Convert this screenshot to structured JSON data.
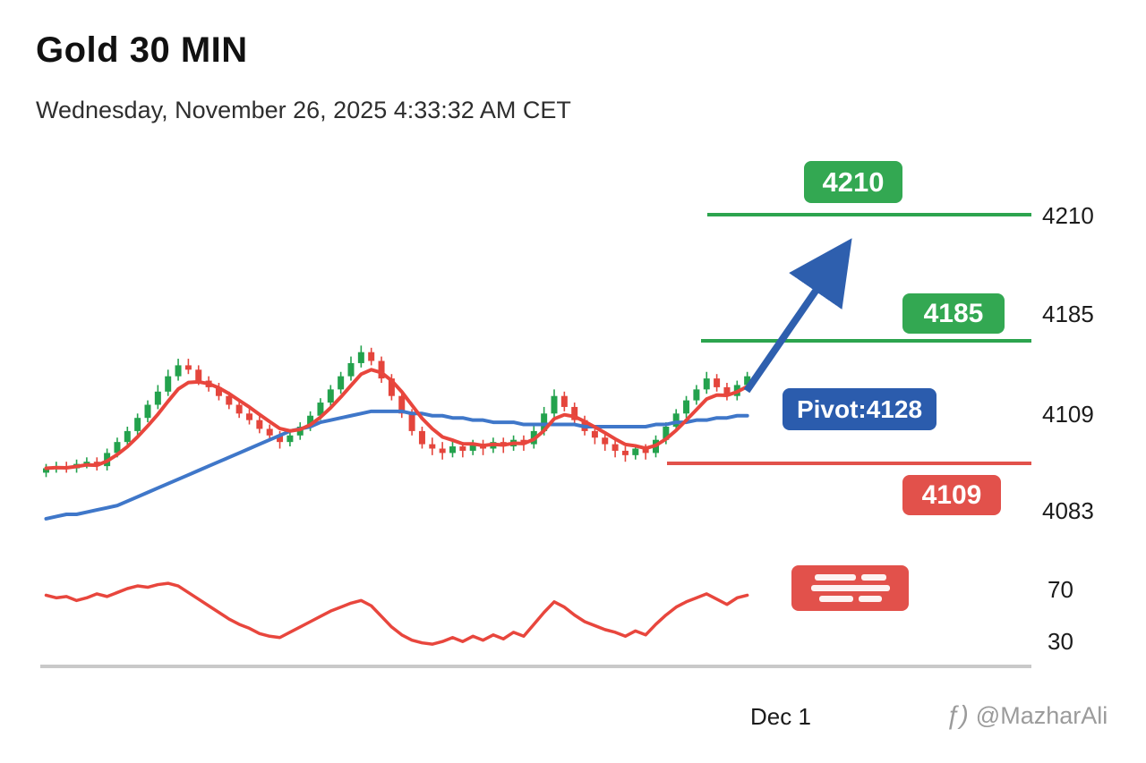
{
  "header": {
    "title": "Gold 30 MIN",
    "subtitle": "Wednesday, November 26, 2025 4:33:32 AM CET"
  },
  "annotations": {
    "resistance1_label": "4210",
    "resistance2_label": "4185",
    "pivot_label": "Pivot:4128",
    "support_label": "4109"
  },
  "axis": {
    "price_labels": [
      "4210",
      "4185",
      "4109",
      "4083"
    ],
    "rsi_labels": [
      "70",
      "30"
    ],
    "x_label": "Dec 1"
  },
  "watermark": {
    "icon": "ƒ)",
    "handle": "@MazharAli"
  },
  "colors": {
    "up_candle": "#23a24d",
    "down_candle": "#e4453c",
    "ma_fast": "#e8463d",
    "ma_slow": "#3f77c9",
    "rsi": "#e8463d",
    "level_green": "#2ca44e",
    "level_red": "#e2514b",
    "badge_green": "#33a852",
    "badge_red": "#e2514b",
    "badge_blue": "#2b5cad",
    "arrow": "#2e5fae",
    "baseline": "#c9c9c9",
    "axis_text": "#1b1b1b",
    "watermark": "#9b9b9b"
  },
  "chart_data": {
    "type": "candlestick",
    "title": "Gold 30 MIN",
    "timestamp": "Wednesday, November 26, 2025 4:33:32 AM CET",
    "x_axis": {
      "tick": "Dec 1"
    },
    "price_axis_range": [
      4075,
      4165
    ],
    "levels": {
      "resistance1": 4210,
      "resistance2": 4185,
      "pivot": 4128,
      "support": 4109
    },
    "right_axis_price_labels": [
      4210,
      4185,
      4109,
      4083
    ],
    "rsi_axis_labels": [
      70,
      30
    ],
    "candles_ohlc": [
      [
        4101,
        4105,
        4099,
        4103
      ],
      [
        4103,
        4106,
        4101,
        4104
      ],
      [
        4104,
        4106,
        4101,
        4103
      ],
      [
        4103,
        4107,
        4101,
        4105
      ],
      [
        4105,
        4108,
        4103,
        4106
      ],
      [
        4106,
        4108,
        4102,
        4104
      ],
      [
        4104,
        4112,
        4102,
        4110
      ],
      [
        4110,
        4117,
        4108,
        4115
      ],
      [
        4115,
        4122,
        4113,
        4120
      ],
      [
        4120,
        4128,
        4118,
        4126
      ],
      [
        4126,
        4134,
        4124,
        4132
      ],
      [
        4132,
        4141,
        4130,
        4138
      ],
      [
        4138,
        4148,
        4136,
        4145
      ],
      [
        4145,
        4153,
        4143,
        4150
      ],
      [
        4150,
        4153,
        4146,
        4148
      ],
      [
        4148,
        4150,
        4141,
        4143
      ],
      [
        4143,
        4145,
        4138,
        4140
      ],
      [
        4140,
        4142,
        4134,
        4136
      ],
      [
        4136,
        4138,
        4130,
        4132
      ],
      [
        4132,
        4134,
        4126,
        4128
      ],
      [
        4128,
        4130,
        4123,
        4125
      ],
      [
        4125,
        4127,
        4119,
        4121
      ],
      [
        4121,
        4123,
        4116,
        4118
      ],
      [
        4118,
        4120,
        4112,
        4115
      ],
      [
        4115,
        4120,
        4113,
        4118
      ],
      [
        4118,
        4124,
        4116,
        4122
      ],
      [
        4122,
        4129,
        4120,
        4127
      ],
      [
        4127,
        4135,
        4125,
        4133
      ],
      [
        4133,
        4141,
        4131,
        4139
      ],
      [
        4139,
        4147,
        4137,
        4145
      ],
      [
        4145,
        4154,
        4143,
        4151
      ],
      [
        4151,
        4159,
        4149,
        4156
      ],
      [
        4156,
        4158,
        4150,
        4152
      ],
      [
        4152,
        4154,
        4142,
        4144
      ],
      [
        4144,
        4146,
        4134,
        4136
      ],
      [
        4136,
        4138,
        4126,
        4128
      ],
      [
        4128,
        4130,
        4118,
        4120
      ],
      [
        4120,
        4122,
        4112,
        4114
      ],
      [
        4114,
        4117,
        4109,
        4112
      ],
      [
        4112,
        4115,
        4107,
        4110
      ],
      [
        4110,
        4116,
        4108,
        4113
      ],
      [
        4113,
        4115,
        4108,
        4111
      ],
      [
        4111,
        4116,
        4109,
        4114
      ],
      [
        4114,
        4116,
        4109,
        4112
      ],
      [
        4112,
        4117,
        4110,
        4115
      ],
      [
        4115,
        4117,
        4110,
        4113
      ],
      [
        4113,
        4118,
        4111,
        4116
      ],
      [
        4116,
        4118,
        4111,
        4114
      ],
      [
        4114,
        4123,
        4112,
        4120
      ],
      [
        4120,
        4131,
        4118,
        4128
      ],
      [
        4128,
        4139,
        4126,
        4136
      ],
      [
        4136,
        4138,
        4129,
        4131
      ],
      [
        4131,
        4133,
        4123,
        4125
      ],
      [
        4125,
        4127,
        4118,
        4120
      ],
      [
        4120,
        4122,
        4114,
        4117
      ],
      [
        4117,
        4119,
        4111,
        4114
      ],
      [
        4114,
        4116,
        4108,
        4111
      ],
      [
        4111,
        4113,
        4106,
        4109
      ],
      [
        4109,
        4114,
        4107,
        4112
      ],
      [
        4112,
        4114,
        4107,
        4110
      ],
      [
        4110,
        4118,
        4108,
        4116
      ],
      [
        4116,
        4124,
        4114,
        4122
      ],
      [
        4122,
        4130,
        4120,
        4128
      ],
      [
        4128,
        4136,
        4126,
        4134
      ],
      [
        4134,
        4141,
        4132,
        4139
      ],
      [
        4139,
        4147,
        4137,
        4144
      ],
      [
        4144,
        4146,
        4138,
        4140
      ],
      [
        4140,
        4142,
        4134,
        4136
      ],
      [
        4136,
        4143,
        4134,
        4141
      ],
      [
        4141,
        4147,
        4139,
        4145
      ]
    ],
    "ma_slow": [
      4080,
      4081,
      4082,
      4082,
      4083,
      4084,
      4085,
      4086,
      4088,
      4090,
      4092,
      4094,
      4096,
      4098,
      4100,
      4102,
      4104,
      4106,
      4108,
      4110,
      4112,
      4114,
      4116,
      4118,
      4120,
      4121,
      4122,
      4124,
      4125,
      4126,
      4127,
      4128,
      4129,
      4129,
      4129,
      4129,
      4128,
      4128,
      4127,
      4127,
      4126,
      4126,
      4125,
      4125,
      4124,
      4124,
      4124,
      4123,
      4123,
      4123,
      4123,
      4123,
      4123,
      4122,
      4122,
      4122,
      4122,
      4122,
      4122,
      4122,
      4123,
      4123,
      4124,
      4124,
      4125,
      4125,
      4126,
      4126,
      4127,
      4127
    ],
    "ma_fast_rule": "EMA(5) of closes",
    "rsi": {
      "bounds": [
        30,
        70
      ],
      "values": [
        65,
        63,
        64,
        61,
        63,
        66,
        64,
        67,
        70,
        72,
        71,
        73,
        74,
        72,
        67,
        62,
        57,
        52,
        47,
        43,
        40,
        36,
        34,
        33,
        37,
        41,
        45,
        49,
        53,
        56,
        59,
        61,
        57,
        49,
        41,
        35,
        31,
        29,
        28,
        30,
        33,
        30,
        34,
        31,
        35,
        32,
        37,
        34,
        43,
        52,
        60,
        56,
        50,
        45,
        42,
        39,
        37,
        34,
        38,
        35,
        43,
        50,
        56,
        60,
        63,
        66,
        62,
        58,
        63,
        65
      ]
    }
  }
}
